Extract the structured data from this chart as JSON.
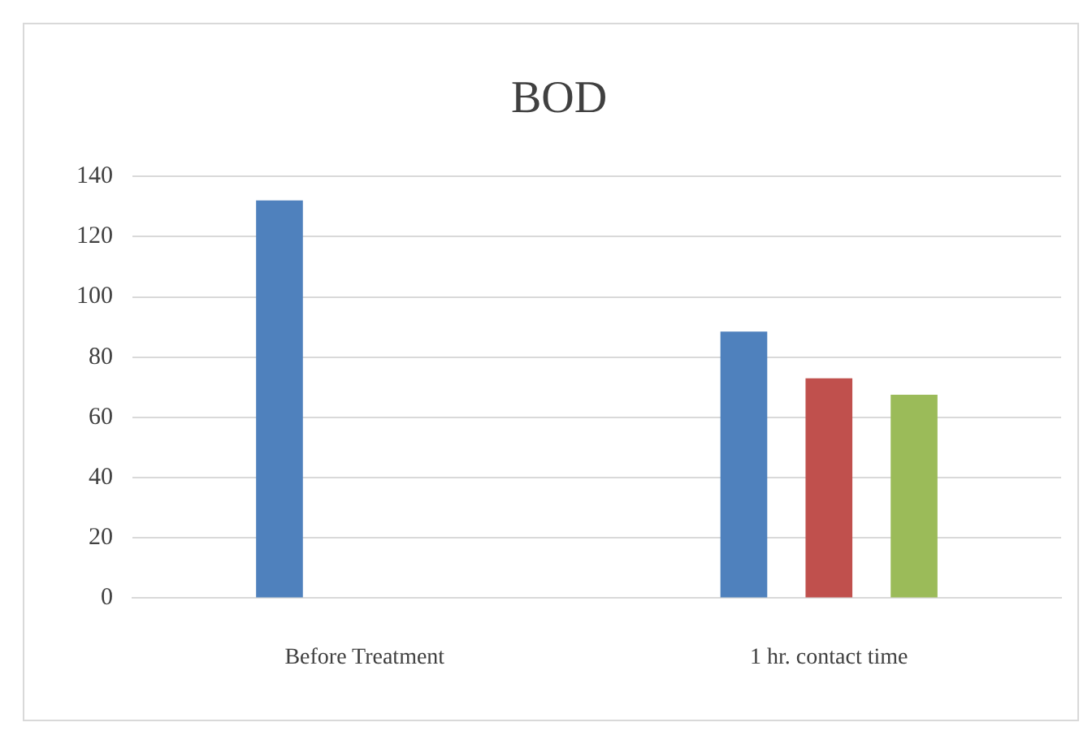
{
  "chart_data": {
    "type": "bar",
    "title": "BOD",
    "categories": [
      "Before Treatment",
      "1 hr. contact time"
    ],
    "series": [
      {
        "color": "#4f81bd",
        "values": [
          132,
          88.5
        ]
      },
      {
        "color": "#c0504d",
        "values": [
          null,
          73
        ]
      },
      {
        "color": "#9bbb59",
        "values": [
          null,
          67.5
        ]
      }
    ],
    "ylim": [
      0,
      140
    ],
    "yticks": [
      0,
      20,
      40,
      60,
      80,
      100,
      120,
      140
    ],
    "grid": "y",
    "legend": false
  }
}
